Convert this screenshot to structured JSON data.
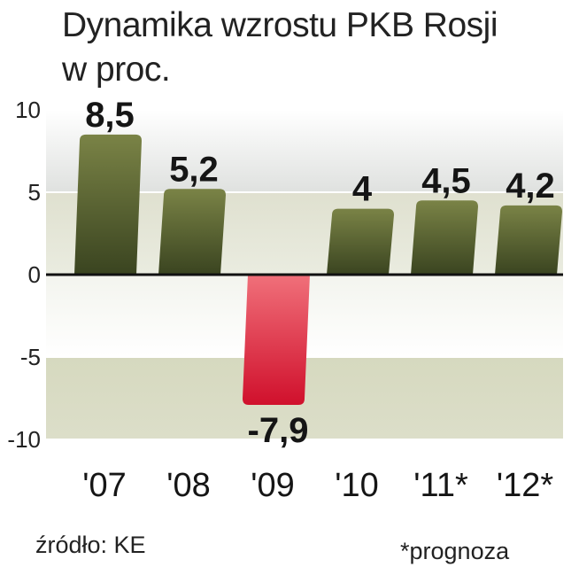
{
  "chart_data": {
    "type": "bar",
    "title": "Dynamika wzrostu PKB Rosji",
    "subtitle": "w proc.",
    "categories": [
      "'07",
      "'08",
      "'09",
      "'10",
      "'11*",
      "'12*"
    ],
    "values": [
      8.5,
      5.2,
      -7.9,
      4,
      4.5,
      4.2
    ],
    "value_labels": [
      "8,5",
      "5,2",
      "-7,9",
      "4",
      "4,5",
      "4,2"
    ],
    "ylim": [
      -10,
      10
    ],
    "yticks": [
      10,
      5,
      0,
      -5,
      -10
    ],
    "ytick_labels": [
      "10",
      "5",
      "0",
      "-5",
      "-10"
    ],
    "grid": true,
    "legend": "none"
  },
  "footer": {
    "source": "źródło: KE",
    "note": "*prognoza"
  },
  "colors": {
    "positive_bar_top": "#7a8346",
    "positive_bar_bottom": "#3a4420",
    "negative_bar_top": "#f0707a",
    "negative_bar_bottom": "#d0102c",
    "band_upper": "#d8dcd6",
    "band_lower": "#d9dbc3",
    "zero_line": "#111111"
  }
}
